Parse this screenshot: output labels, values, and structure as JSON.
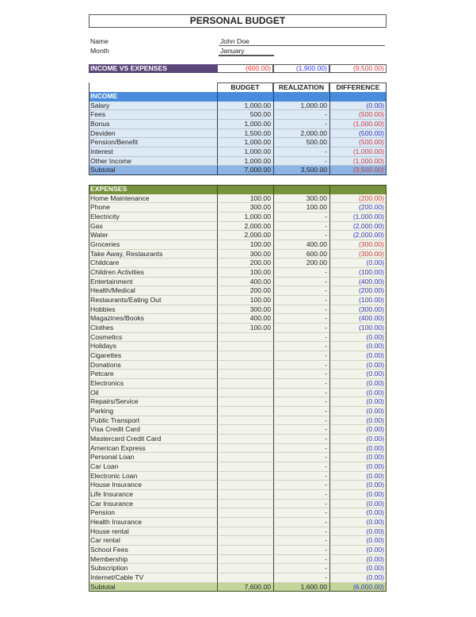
{
  "title": "PERSONAL BUDGET",
  "info": {
    "name_label": "Name",
    "name_value": "John Doe",
    "month_label": "Month",
    "month_value": "January"
  },
  "income_vs_expenses": {
    "label": "INCOME VS EXPENSES",
    "budget": "(600.00)",
    "budget_color": "red",
    "realization": "(1,900.00)",
    "realization_color": "blue",
    "difference": "(9,500.00)",
    "difference_color": "red"
  },
  "columns": [
    "BUDGET",
    "REALIZATION",
    "DIFFERENCE"
  ],
  "colors": {
    "red": "#e53333",
    "blue": "#3333dd",
    "income_header": "#4a8cdc",
    "expenses_header": "#76923c",
    "summary": "#5b467a"
  },
  "income": {
    "header": "INCOME",
    "rows": [
      {
        "label": "Salary",
        "budget": "1,000.00",
        "realization": "1,000.00",
        "difference": "(0.00)",
        "color": "blue"
      },
      {
        "label": "Fees",
        "budget": "500.00",
        "realization": "-",
        "difference": "(500.00)",
        "color": "red"
      },
      {
        "label": "Bonus",
        "budget": "1,000.00",
        "realization": "-",
        "difference": "(1,000.00)",
        "color": "red"
      },
      {
        "label": "Deviden",
        "budget": "1,500.00",
        "realization": "2,000.00",
        "difference": "(500.00)",
        "color": "blue"
      },
      {
        "label": "Pension/Benefit",
        "budget": "1,000.00",
        "realization": "500.00",
        "difference": "(500.00)",
        "color": "red"
      },
      {
        "label": "Interest",
        "budget": "1,000.00",
        "realization": "-",
        "difference": "(1,000.00)",
        "color": "red"
      },
      {
        "label": "Other Income",
        "budget": "1,000.00",
        "realization": "-",
        "difference": "(1,000.00)",
        "color": "red"
      }
    ],
    "subtotal": {
      "label": "Subtotal",
      "budget": "7,000.00",
      "realization": "3,500.00",
      "difference": "(3,500.00)",
      "color": "red"
    }
  },
  "expenses": {
    "header": "EXPENSES",
    "rows": [
      {
        "label": "Home Maintenance",
        "budget": "100.00",
        "realization": "300.00",
        "difference": "(200.00)",
        "color": "red"
      },
      {
        "label": "Phone",
        "budget": "300.00",
        "realization": "100.00",
        "difference": "(200.00)",
        "color": "blue"
      },
      {
        "label": "Electricity",
        "budget": "1,000.00",
        "realization": "-",
        "difference": "(1,000.00)",
        "color": "blue"
      },
      {
        "label": "Gas",
        "budget": "2,000.00",
        "realization": "-",
        "difference": "(2,000.00)",
        "color": "blue"
      },
      {
        "label": "Water",
        "budget": "2,000.00",
        "realization": "-",
        "difference": "(2,000.00)",
        "color": "blue"
      },
      {
        "label": "Groceries",
        "budget": "100.00",
        "realization": "400.00",
        "difference": "(300.00)",
        "color": "red"
      },
      {
        "label": "Take Away, Restaurants",
        "budget": "300.00",
        "realization": "600.00",
        "difference": "(300.00)",
        "color": "red"
      },
      {
        "label": "Childcare",
        "budget": "200.00",
        "realization": "200.00",
        "difference": "(0.00)",
        "color": "blue"
      },
      {
        "label": "Children Activities",
        "budget": "100.00",
        "realization": "-",
        "difference": "(100.00)",
        "color": "blue"
      },
      {
        "label": "Entertainment",
        "budget": "400.00",
        "realization": "-",
        "difference": "(400.00)",
        "color": "blue"
      },
      {
        "label": "Health/Medical",
        "budget": "200.00",
        "realization": "-",
        "difference": "(200.00)",
        "color": "blue"
      },
      {
        "label": "Restaurants/Eating Out",
        "budget": "100.00",
        "realization": "-",
        "difference": "(100.00)",
        "color": "blue"
      },
      {
        "label": "Hobbies",
        "budget": "300.00",
        "realization": "-",
        "difference": "(300.00)",
        "color": "blue"
      },
      {
        "label": "Magazines/Books",
        "budget": "400.00",
        "realization": "-",
        "difference": "(400.00)",
        "color": "blue"
      },
      {
        "label": "Clothes",
        "budget": "100.00",
        "realization": "-",
        "difference": "(100.00)",
        "color": "blue"
      },
      {
        "label": "Cosmetics",
        "budget": "",
        "realization": "-",
        "difference": "(0.00)",
        "color": "blue"
      },
      {
        "label": "Holidays",
        "budget": "",
        "realization": "-",
        "difference": "(0.00)",
        "color": "blue"
      },
      {
        "label": "Cigarettes",
        "budget": "",
        "realization": "-",
        "difference": "(0.00)",
        "color": "blue"
      },
      {
        "label": "Donations",
        "budget": "",
        "realization": "-",
        "difference": "(0.00)",
        "color": "blue"
      },
      {
        "label": "Petcare",
        "budget": "",
        "realization": "-",
        "difference": "(0.00)",
        "color": "blue"
      },
      {
        "label": "Electronics",
        "budget": "",
        "realization": "-",
        "difference": "(0.00)",
        "color": "blue"
      },
      {
        "label": "Oil",
        "budget": "",
        "realization": "-",
        "difference": "(0.00)",
        "color": "blue"
      },
      {
        "label": "Repairs/Service",
        "budget": "",
        "realization": "-",
        "difference": "(0.00)",
        "color": "blue"
      },
      {
        "label": "Parking",
        "budget": "",
        "realization": "-",
        "difference": "(0.00)",
        "color": "blue"
      },
      {
        "label": "Public Transport",
        "budget": "",
        "realization": "-",
        "difference": "(0.00)",
        "color": "blue"
      },
      {
        "label": "Visa Credit Card",
        "budget": "",
        "realization": "-",
        "difference": "(0.00)",
        "color": "blue"
      },
      {
        "label": "Mastercard Credit Card",
        "budget": "",
        "realization": "-",
        "difference": "(0.00)",
        "color": "blue"
      },
      {
        "label": "American Express",
        "budget": "",
        "realization": "-",
        "difference": "(0.00)",
        "color": "blue"
      },
      {
        "label": "Personal Loan",
        "budget": "",
        "realization": "-",
        "difference": "(0.00)",
        "color": "blue"
      },
      {
        "label": "Car Loan",
        "budget": "",
        "realization": "-",
        "difference": "(0.00)",
        "color": "blue"
      },
      {
        "label": "Electronic Loan",
        "budget": "",
        "realization": "-",
        "difference": "(0.00)",
        "color": "blue"
      },
      {
        "label": "House Insurance",
        "budget": "",
        "realization": "-",
        "difference": "(0.00)",
        "color": "blue"
      },
      {
        "label": "Life Insurance",
        "budget": "",
        "realization": "-",
        "difference": "(0.00)",
        "color": "blue"
      },
      {
        "label": "Car Insurance",
        "budget": "",
        "realization": "-",
        "difference": "(0.00)",
        "color": "blue"
      },
      {
        "label": "Pension",
        "budget": "",
        "realization": "-",
        "difference": "(0.00)",
        "color": "blue"
      },
      {
        "label": "Health Insurance",
        "budget": "",
        "realization": "-",
        "difference": "(0.00)",
        "color": "blue"
      },
      {
        "label": "House rental",
        "budget": "",
        "realization": "-",
        "difference": "(0.00)",
        "color": "blue"
      },
      {
        "label": "Car rental",
        "budget": "",
        "realization": "-",
        "difference": "(0.00)",
        "color": "blue"
      },
      {
        "label": "School Fees",
        "budget": "",
        "realization": "-",
        "difference": "(0.00)",
        "color": "blue"
      },
      {
        "label": "Membership",
        "budget": "",
        "realization": "-",
        "difference": "(0.00)",
        "color": "blue"
      },
      {
        "label": "Subscription",
        "budget": "",
        "realization": "-",
        "difference": "(0.00)",
        "color": "blue"
      },
      {
        "label": "Internet/Cable TV",
        "budget": "",
        "realization": "-",
        "difference": "(0.00)",
        "color": "blue"
      }
    ],
    "subtotal": {
      "label": "Subtotal",
      "budget": "7,600.00",
      "realization": "1,600.00",
      "difference": "(6,000.00)",
      "color": "blue"
    }
  }
}
